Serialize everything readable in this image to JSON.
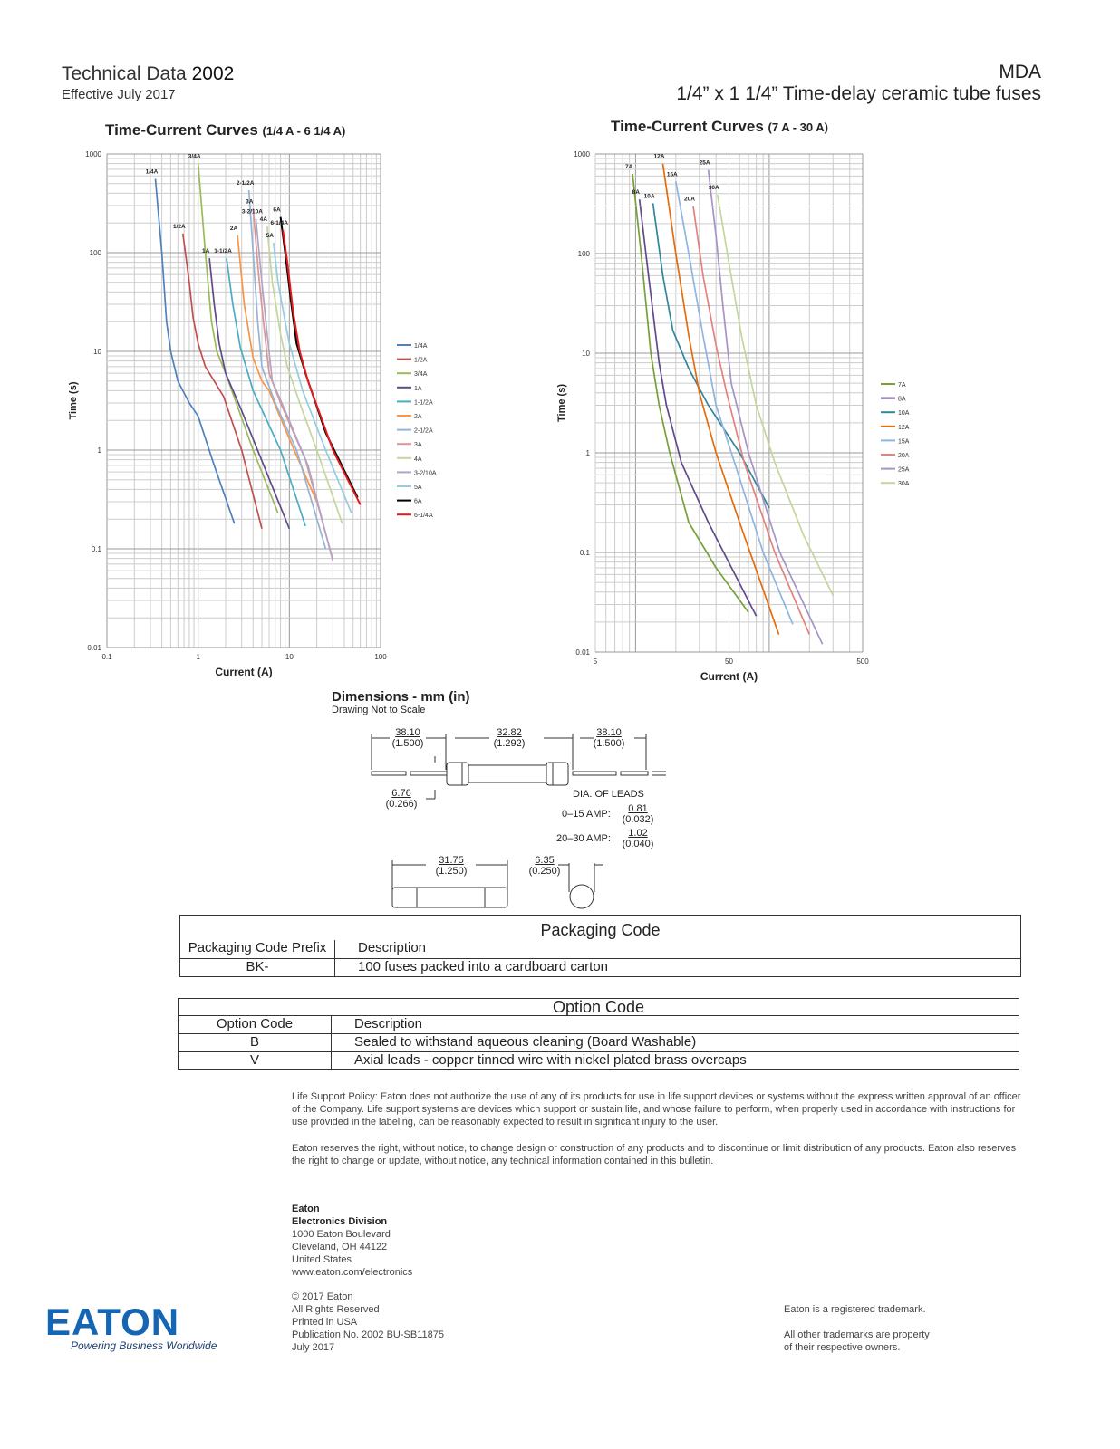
{
  "header": {
    "left_title": "Technical Data",
    "left_number": "2002",
    "effective": "Effective July 2017",
    "product": "MDA",
    "product_desc": "1/4” x 1 1/4” Time-delay ceramic tube fuses"
  },
  "chart_data": [
    {
      "type": "line",
      "title": "Time-Current Curves",
      "title_range": "(1/4 A - 6 1/4 A)",
      "xlabel": "Current (A)",
      "ylabel": "Time (s)",
      "xscale": "log",
      "yscale": "log",
      "xlim": [
        0.1,
        100
      ],
      "ylim": [
        0.01,
        1000
      ],
      "xticks": [
        "0.1",
        "1",
        "10",
        "100"
      ],
      "yticks": [
        "0.01",
        "0.1",
        "1",
        "10",
        "100",
        "1000"
      ],
      "grid": true,
      "legend": "right",
      "series": [
        {
          "name": "1/4A",
          "color": "#4f81bd",
          "points": [
            [
              0.34,
              560
            ],
            [
              0.4,
              100
            ],
            [
              0.45,
              20
            ],
            [
              0.5,
              10
            ],
            [
              0.6,
              5
            ],
            [
              0.8,
              3
            ],
            [
              1,
              2.2
            ],
            [
              1.5,
              0.7
            ],
            [
              2.5,
              0.18
            ]
          ]
        },
        {
          "name": "1/2A",
          "color": "#c0504d",
          "points": [
            [
              0.68,
              156
            ],
            [
              0.8,
              50
            ],
            [
              0.88,
              22
            ],
            [
              1.0,
              12
            ],
            [
              1.2,
              7
            ],
            [
              1.5,
              5
            ],
            [
              1.9,
              3.5
            ],
            [
              3,
              1
            ],
            [
              5,
              0.16
            ]
          ]
        },
        {
          "name": "3/4A",
          "color": "#9bbb59",
          "points": [
            [
              1,
              800
            ],
            [
              1.2,
              100
            ],
            [
              1.4,
              20
            ],
            [
              1.6,
              10
            ],
            [
              2,
              6
            ],
            [
              4,
              1
            ],
            [
              7.5,
              0.23
            ]
          ]
        },
        {
          "name": "1A",
          "color": "#604a8c",
          "points": [
            [
              1.33,
              88
            ],
            [
              1.5,
              30
            ],
            [
              1.7,
              12
            ],
            [
              2,
              6
            ],
            [
              3,
              2.5
            ],
            [
              10,
              0.16
            ]
          ]
        },
        {
          "name": "1-1/2A",
          "color": "#4bacc6",
          "points": [
            [
              2.05,
              88
            ],
            [
              2.4,
              30
            ],
            [
              2.9,
              11
            ],
            [
              4,
              4
            ],
            [
              8,
              1
            ],
            [
              15,
              0.17
            ]
          ]
        },
        {
          "name": "2A",
          "color": "#f79646",
          "points": [
            [
              2.7,
              150
            ],
            [
              3.2,
              30
            ],
            [
              4,
              8.6
            ],
            [
              5,
              5
            ],
            [
              6,
              4
            ],
            [
              10,
              1.3
            ],
            [
              20,
              0.3
            ]
          ]
        },
        {
          "name": "2-1/2A",
          "color": "#95b3d7",
          "points": [
            [
              3.6,
              430
            ],
            [
              4,
              100
            ],
            [
              4.5,
              20
            ],
            [
              5,
              7
            ],
            [
              7,
              3
            ],
            [
              12,
              1
            ],
            [
              25,
              0.1
            ]
          ]
        },
        {
          "name": "3A",
          "color": "#d99694",
          "points": [
            [
              4,
              280
            ],
            [
              4.6,
              60
            ],
            [
              5.2,
              20
            ],
            [
              6,
              6
            ],
            [
              8,
              3
            ],
            [
              15,
              0.8
            ],
            [
              30,
              0.077
            ]
          ]
        },
        {
          "name": "4A",
          "color": "#c3d69b",
          "points": [
            [
              5.7,
              185
            ],
            [
              6.5,
              50
            ],
            [
              8,
              15
            ],
            [
              9.5,
              7
            ],
            [
              13,
              3
            ],
            [
              20,
              1
            ],
            [
              38,
              0.18
            ]
          ]
        },
        {
          "name": "3-2/10A",
          "color": "#b3a2c7",
          "points": [
            [
              4.3,
              220
            ],
            [
              5,
              50
            ],
            [
              5.7,
              15
            ],
            [
              6.5,
              5
            ],
            [
              9,
              2.5
            ],
            [
              16,
              0.7
            ],
            [
              30,
              0.075
            ]
          ]
        },
        {
          "name": "5A",
          "color": "#93cddd",
          "points": [
            [
              6.7,
              126
            ],
            [
              7.5,
              50
            ],
            [
              9,
              20
            ],
            [
              10,
              12
            ],
            [
              14,
              4
            ],
            [
              25,
              1
            ],
            [
              48,
              0.23
            ]
          ]
        },
        {
          "name": "6A",
          "color": "#000000",
          "points": [
            [
              8,
              230
            ],
            [
              9,
              100
            ],
            [
              10.5,
              30
            ],
            [
              12,
              12
            ],
            [
              15,
              6
            ],
            [
              25,
              1.5
            ],
            [
              56,
              0.33
            ]
          ]
        },
        {
          "name": "6-1/4A",
          "color": "#e31a1c",
          "points": [
            [
              8.5,
              170
            ],
            [
              9.5,
              80
            ],
            [
              11,
              25
            ],
            [
              13,
              10
            ],
            [
              16,
              5
            ],
            [
              30,
              1
            ],
            [
              60,
              0.28
            ]
          ]
        }
      ]
    },
    {
      "type": "line",
      "title": "Time-Current Curves",
      "title_range": "(7 A - 30 A)",
      "xlabel": "Current (A)",
      "ylabel": "Time (s)",
      "xscale": "log",
      "yscale": "log",
      "xlim": [
        5,
        500
      ],
      "ylim": [
        0.01,
        1000
      ],
      "xticks": [
        "5",
        "50",
        "500"
      ],
      "yticks": [
        "0.01",
        "0.1",
        "1",
        "10",
        "100",
        "1000"
      ],
      "grid": true,
      "legend": "right",
      "series": [
        {
          "name": "7A",
          "color": "#77a03c",
          "points": [
            [
              9.5,
              630
            ],
            [
              11,
              100
            ],
            [
              13,
              10
            ],
            [
              15,
              3
            ],
            [
              18,
              1
            ],
            [
              25,
              0.2
            ],
            [
              40,
              0.07
            ],
            [
              70,
              0.025
            ]
          ]
        },
        {
          "name": "8A",
          "color": "#604a8c",
          "points": [
            [
              10.7,
              350
            ],
            [
              12.5,
              60
            ],
            [
              15,
              8
            ],
            [
              17,
              3
            ],
            [
              22,
              0.8
            ],
            [
              35,
              0.2
            ],
            [
              80,
              0.023
            ]
          ]
        },
        {
          "name": "10A",
          "color": "#31859c",
          "points": [
            [
              13.5,
              320
            ],
            [
              16,
              60
            ],
            [
              19,
              17
            ],
            [
              25,
              7
            ],
            [
              35,
              3
            ],
            [
              60,
              1
            ],
            [
              100,
              0.28
            ]
          ]
        },
        {
          "name": "12A",
          "color": "#e46c0a",
          "points": [
            [
              16,
              800
            ],
            [
              20,
              100
            ],
            [
              25,
              15
            ],
            [
              30,
              4
            ],
            [
              40,
              1
            ],
            [
              60,
              0.2
            ],
            [
              118,
              0.015
            ]
          ]
        },
        {
          "name": "15A",
          "color": "#8eb4e3",
          "points": [
            [
              20,
              530
            ],
            [
              25,
              100
            ],
            [
              32,
              15
            ],
            [
              40,
              3
            ],
            [
              55,
              0.8
            ],
            [
              90,
              0.1
            ],
            [
              150,
              0.019
            ]
          ]
        },
        {
          "name": "20A",
          "color": "#e6807e",
          "points": [
            [
              27,
              300
            ],
            [
              32,
              60
            ],
            [
              40,
              12
            ],
            [
              48,
              4
            ],
            [
              65,
              0.8
            ],
            [
              110,
              0.1
            ],
            [
              200,
              0.015
            ]
          ]
        },
        {
          "name": "25A",
          "color": "#a593c6",
          "points": [
            [
              35,
              690
            ],
            [
              40,
              150
            ],
            [
              45,
              30
            ],
            [
              52,
              5
            ],
            [
              70,
              1
            ],
            [
              120,
              0.1
            ],
            [
              250,
              0.012
            ]
          ]
        },
        {
          "name": "30A",
          "color": "#c3d69b",
          "points": [
            [
              41,
              390
            ],
            [
              50,
              80
            ],
            [
              62,
              15
            ],
            [
              80,
              3
            ],
            [
              110,
              0.8
            ],
            [
              180,
              0.15
            ],
            [
              300,
              0.037
            ]
          ]
        }
      ]
    }
  ],
  "dimensions": {
    "title": "Dimensions - mm (in)",
    "subtitle": "Drawing Not to Scale",
    "lead_left": [
      "38.10",
      "(1.500)"
    ],
    "body": [
      "32.82",
      "(1.292)"
    ],
    "lead_right": [
      "38.10",
      "(1.500)"
    ],
    "diameter": [
      "6.76",
      "(0.266)"
    ],
    "dia_leads_label": "DIA. OF LEADS",
    "amp1_label": "0–15 AMP:",
    "amp1": [
      "0.81",
      "(0.032)"
    ],
    "amp2_label": "20–30 AMP:",
    "amp2": [
      "1.02",
      "(0.040)"
    ],
    "length": [
      "31.75",
      "(1.250)"
    ],
    "end_dia": [
      "6.35",
      "(0.250)"
    ]
  },
  "packaging": {
    "title": "Packaging Code",
    "headers": [
      "Packaging Code Prefix",
      "Description"
    ],
    "rows": [
      [
        "BK-",
        "100 fuses packed into a cardboard carton"
      ]
    ]
  },
  "options": {
    "title": "Option Code",
    "headers": [
      "Option Code",
      "Description"
    ],
    "rows": [
      [
        "B",
        "Sealed to withstand aqueous cleaning (Board Washable)"
      ],
      [
        "V",
        "Axial leads - copper tinned wire with nickel plated brass overcaps"
      ]
    ]
  },
  "policy": [
    "Life Support Policy: Eaton does not authorize the use of any of its products for use in life support devices or systems without the express written approval of an officer of the Company. Life support systems are devices which support or sustain life, and whose failure to perform, when properly used in accordance with instructions for use provided in the labeling, can be reasonably expected to result in significant injury to the user.",
    "Eaton reserves the right, without notice, to change design or construction of any products and to discontinue or limit distribution of any products. Eaton also reserves the right to change or update, without notice, any technical information contained in this bulletin."
  ],
  "address": {
    "company": "Eaton",
    "division": "Electronics Division",
    "lines": [
      "1000 Eaton Boulevard",
      "Cleveland, OH 44122",
      "United States",
      "www.eaton.com/electronics"
    ]
  },
  "copyright": [
    "© 2017 Eaton",
    "All Rights Reserved",
    "Printed in USA",
    "Publication No. 2002 BU-SB11875",
    "July 2017"
  ],
  "trademarks": [
    "Eaton is a registered trademark.",
    "All other trademarks are property",
    "of their respective owners."
  ],
  "logo": {
    "text": "EATON",
    "tagline": "Powering Business Worldwide",
    "color": "#1565b5"
  }
}
